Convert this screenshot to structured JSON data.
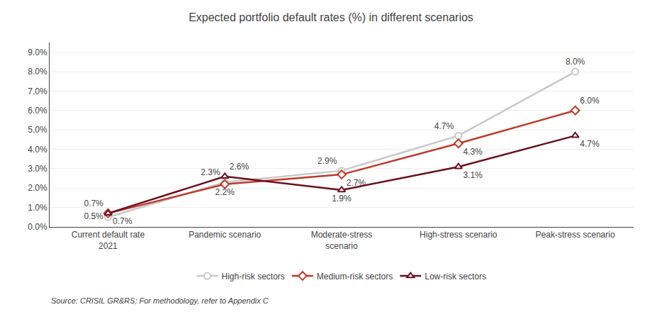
{
  "chart_data": {
    "type": "line",
    "title": "Expected portfolio default rates (%) in different scenarios",
    "categories": [
      "Current default rate\n2021",
      "Pandemic scenario",
      "Moderate-stress\nscenario",
      "High-stress scenario",
      "Peak-stress scenario"
    ],
    "series": [
      {
        "name": "High-risk sectors",
        "color": "#c8c8c8",
        "marker": "circle",
        "values": [
          0.5,
          2.3,
          2.9,
          4.7,
          8.0
        ],
        "value_labels": [
          "0.5%",
          "2.3%",
          "2.9%",
          "4.7%",
          "8.0%"
        ]
      },
      {
        "name": "Medium-risk sectors",
        "color": "#c0392b",
        "marker": "diamond",
        "values": [
          0.7,
          2.2,
          2.7,
          4.3,
          6.0
        ],
        "value_labels": [
          "0.7%",
          "2.2%",
          "2.7%",
          "4.3%",
          "6.0%"
        ]
      },
      {
        "name": "Low-risk sectors",
        "color": "#6b1020",
        "marker": "triangle-up",
        "values": [
          0.7,
          2.6,
          1.9,
          3.1,
          4.7
        ],
        "value_labels": [
          "0.7%",
          "2.6%",
          "1.9%",
          "3.1%",
          "4.7%"
        ]
      }
    ],
    "ylim": [
      0.0,
      9.5
    ],
    "yticks": [
      {
        "value": 0.0,
        "label": "0.0%"
      },
      {
        "value": 1.0,
        "label": "1.0%"
      },
      {
        "value": 2.0,
        "label": "2.0%"
      },
      {
        "value": 3.0,
        "label": "3.0%"
      },
      {
        "value": 4.0,
        "label": "4.0%"
      },
      {
        "value": 5.0,
        "label": "5.0%"
      },
      {
        "value": 6.0,
        "label": "6.0%"
      },
      {
        "value": 7.0,
        "label": "7.0%"
      },
      {
        "value": 8.0,
        "label": "8.0%"
      },
      {
        "value": 9.0,
        "label": "9.0%"
      }
    ],
    "grid": true,
    "legend": "bottom",
    "data_labels": true,
    "annotations": [
      "Source: CRISIL GR&RS; For methodology, refer to Appendix C"
    ]
  }
}
